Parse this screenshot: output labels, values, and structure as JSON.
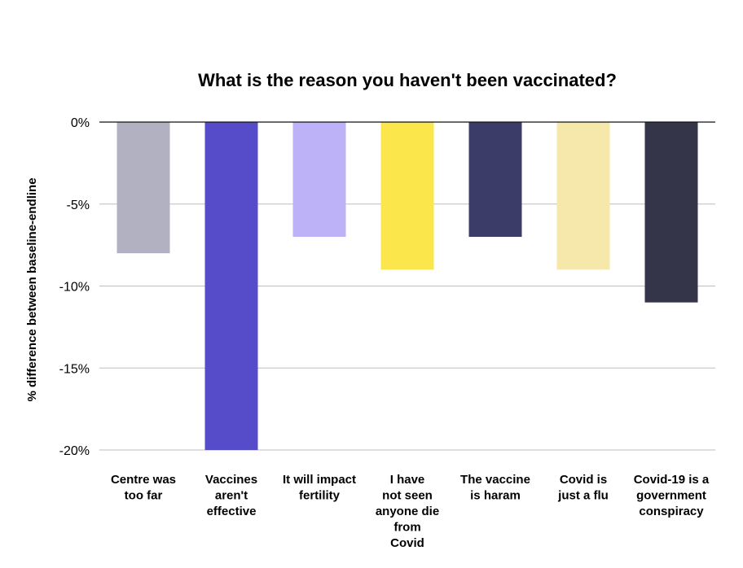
{
  "chart_data": {
    "type": "bar",
    "title": "What is the reason you haven't been vaccinated?",
    "xlabel": "",
    "ylabel": "% difference between baseline-endline",
    "ylim": [
      -20,
      0
    ],
    "yticks": [
      0,
      -5,
      -10,
      -15,
      -20
    ],
    "ytick_labels": [
      "0%",
      "-5%",
      "-10%",
      "-15%",
      "-20%"
    ],
    "grid": true,
    "categories": [
      [
        "Centre was",
        "too far"
      ],
      [
        "Vaccines",
        "aren't",
        "effective"
      ],
      [
        "It will impact",
        "fertility"
      ],
      [
        "I have",
        "not seen",
        "anyone die",
        "from",
        "Covid"
      ],
      [
        "The vaccine",
        "is haram"
      ],
      [
        "Covid is",
        "just a flu"
      ],
      [
        "Covid-19 is a",
        "government",
        "conspiracy"
      ]
    ],
    "values": [
      -8,
      -20,
      -7,
      -9,
      -7,
      -9,
      -11
    ],
    "colors": [
      "#b1b1c1",
      "#564bc8",
      "#bdb2f7",
      "#fbe74b",
      "#3b3c68",
      "#f5e8aa",
      "#35354a"
    ]
  }
}
